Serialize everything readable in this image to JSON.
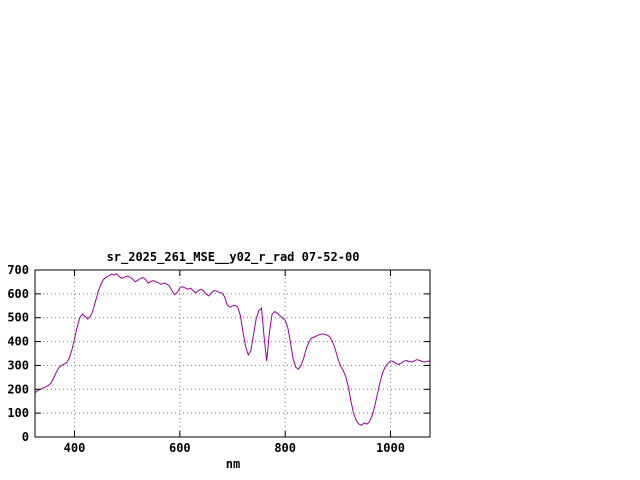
{
  "chart_data": {
    "type": "line",
    "title": "sr_2025_261_MSE__y02_r_rad 07-52-00",
    "xlabel": "nm",
    "ylabel": "",
    "xlim": [
      325,
      1075
    ],
    "ylim": [
      0,
      700
    ],
    "xticks": [
      400,
      600,
      800,
      1000
    ],
    "yticks": [
      0,
      100,
      200,
      300,
      400,
      500,
      600,
      700
    ],
    "grid": true,
    "legend": "none",
    "line_color": "#990099",
    "grid_color": "#7f7f7f",
    "axis_color": "#000000",
    "x": [
      325,
      330,
      335,
      340,
      345,
      350,
      355,
      360,
      365,
      370,
      375,
      380,
      385,
      390,
      395,
      400,
      405,
      410,
      415,
      420,
      425,
      430,
      435,
      440,
      445,
      450,
      455,
      460,
      465,
      470,
      475,
      480,
      485,
      490,
      495,
      500,
      505,
      510,
      515,
      520,
      525,
      530,
      535,
      540,
      545,
      550,
      555,
      560,
      565,
      570,
      575,
      580,
      585,
      590,
      595,
      600,
      605,
      610,
      615,
      620,
      625,
      630,
      635,
      640,
      645,
      650,
      655,
      660,
      665,
      670,
      675,
      680,
      685,
      690,
      695,
      700,
      705,
      710,
      715,
      720,
      725,
      730,
      735,
      740,
      745,
      750,
      755,
      760,
      765,
      770,
      775,
      780,
      785,
      790,
      795,
      800,
      805,
      810,
      815,
      820,
      825,
      830,
      835,
      840,
      845,
      850,
      855,
      860,
      865,
      870,
      875,
      880,
      885,
      890,
      895,
      900,
      905,
      910,
      915,
      920,
      925,
      930,
      935,
      940,
      945,
      950,
      955,
      960,
      965,
      970,
      975,
      980,
      985,
      990,
      995,
      1000,
      1005,
      1010,
      1015,
      1020,
      1025,
      1030,
      1035,
      1040,
      1045,
      1050,
      1055,
      1060,
      1065,
      1070,
      1075
    ],
    "y": [
      185,
      195,
      200,
      205,
      210,
      215,
      225,
      245,
      270,
      290,
      300,
      305,
      312,
      330,
      365,
      410,
      460,
      500,
      515,
      505,
      495,
      505,
      530,
      570,
      610,
      640,
      660,
      670,
      675,
      683,
      678,
      685,
      672,
      665,
      670,
      675,
      670,
      663,
      650,
      657,
      665,
      668,
      660,
      645,
      652,
      656,
      650,
      645,
      640,
      646,
      641,
      634,
      614,
      597,
      606,
      624,
      630,
      625,
      619,
      624,
      614,
      604,
      614,
      619,
      613,
      599,
      591,
      604,
      614,
      611,
      607,
      603,
      588,
      554,
      544,
      550,
      552,
      544,
      508,
      438,
      378,
      344,
      362,
      432,
      496,
      530,
      540,
      420,
      318,
      438,
      514,
      526,
      519,
      509,
      499,
      489,
      458,
      398,
      328,
      293,
      284,
      299,
      329,
      369,
      399,
      414,
      419,
      424,
      429,
      432,
      430,
      427,
      419,
      399,
      369,
      329,
      299,
      279,
      254,
      209,
      149,
      99,
      69,
      54,
      49,
      59,
      54,
      64,
      89,
      129,
      179,
      229,
      269,
      294,
      309,
      319,
      317,
      309,
      304,
      309,
      317,
      321,
      317,
      314,
      319,
      324,
      321,
      317,
      314,
      317,
      319
    ]
  }
}
